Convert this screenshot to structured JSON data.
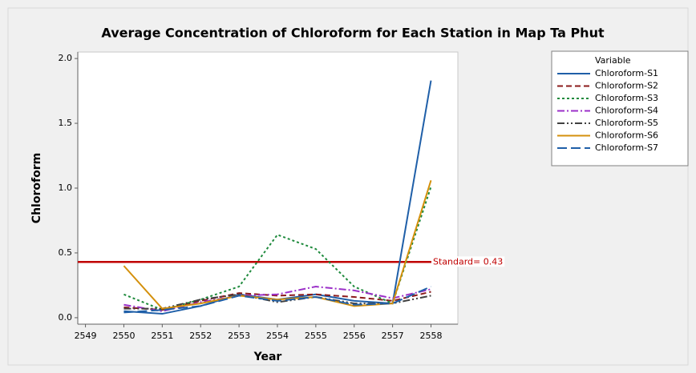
{
  "chart_data": {
    "type": "line",
    "title": "Average Concentration of Chloroform for Each Station  in Map Ta Phut",
    "x_label": "Year",
    "y_label": "Chloroform",
    "x": [
      2550,
      2551,
      2552,
      2553,
      2554,
      2555,
      2556,
      2557,
      2558
    ],
    "xlim": [
      2548.8,
      2558.7
    ],
    "xticks": [
      2549,
      2550,
      2551,
      2552,
      2553,
      2554,
      2555,
      2556,
      2557,
      2558
    ],
    "ylim": [
      -0.05,
      2.05
    ],
    "yticks": [
      {
        "value": 0,
        "label": "0.0"
      },
      0.5,
      {
        "value": 1,
        "label": "1.0"
      },
      1.5,
      {
        "value": 2,
        "label": "2.0"
      }
    ],
    "grid": false,
    "legend_title": "Variable",
    "legend": "right",
    "series": [
      {
        "name": "Chloroform-S1",
        "color": "#1f5fa8",
        "line_style": "solid",
        "values": [
          0.05,
          0.03,
          0.09,
          0.18,
          0.14,
          0.18,
          0.13,
          0.11,
          1.83
        ]
      },
      {
        "name": "Chloroform-S2",
        "color": "#8b1a1a",
        "line_style": "dashed",
        "values": [
          0.08,
          0.06,
          0.13,
          0.19,
          0.17,
          0.18,
          0.16,
          0.13,
          0.2
        ]
      },
      {
        "name": "Chloroform-S3",
        "color": "#1e8a3c",
        "line_style": "dotted",
        "values": [
          0.18,
          0.06,
          0.14,
          0.24,
          0.64,
          0.53,
          0.24,
          0.11,
          1.01
        ]
      },
      {
        "name": "Chloroform-S4",
        "color": "#9b30c8",
        "line_style": "dashdot",
        "values": [
          0.1,
          0.05,
          0.12,
          0.17,
          0.18,
          0.24,
          0.21,
          0.15,
          0.22
        ]
      },
      {
        "name": "Chloroform-S5",
        "color": "#404040",
        "line_style": "dashdotdot",
        "values": [
          0.07,
          0.07,
          0.14,
          0.18,
          0.12,
          0.16,
          0.11,
          0.11,
          0.17
        ]
      },
      {
        "name": "Chloroform-S6",
        "color": "#d4900c",
        "line_style": "solid",
        "values": [
          0.4,
          0.07,
          0.11,
          0.17,
          0.14,
          0.16,
          0.09,
          0.11,
          1.06
        ]
      },
      {
        "name": "Chloroform-S7",
        "color": "#1f5fa8",
        "line_style": "longdash",
        "values": [
          0.04,
          0.06,
          0.09,
          0.17,
          0.13,
          0.16,
          0.1,
          0.11,
          0.24
        ]
      }
    ],
    "annotations": [
      {
        "text": "Standard= 0.43",
        "value": 0.43,
        "color": "#c00000"
      }
    ]
  }
}
